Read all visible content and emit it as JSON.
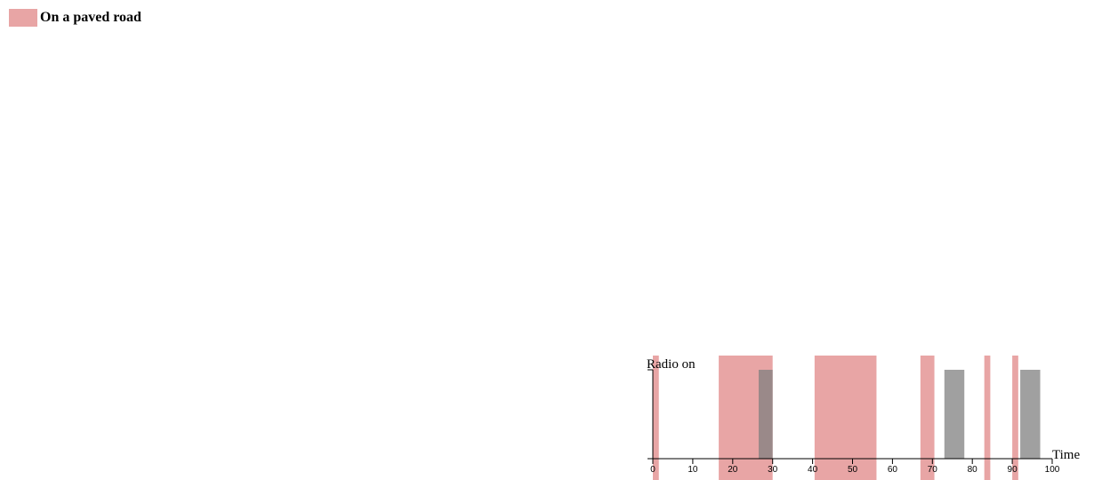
{
  "legend": {
    "label": "On a paved road",
    "color": "#e8a5a5"
  },
  "chart_data": {
    "type": "bar",
    "xlabel": "Time",
    "ylabel": "Radio on",
    "xlim": [
      0,
      100
    ],
    "x_ticks": [
      "0",
      "10",
      "20",
      "30",
      "40",
      "50",
      "60",
      "70",
      "80",
      "90",
      "100"
    ],
    "shaded_intervals": {
      "name": "On a paved road",
      "color": "#e8a5a5",
      "ranges": [
        [
          0,
          1.5
        ],
        [
          16.5,
          30
        ],
        [
          40.5,
          56
        ],
        [
          67,
          70.5
        ],
        [
          83,
          84.5
        ],
        [
          90,
          91.5
        ]
      ]
    },
    "radio_on_intervals": {
      "color": "#808080",
      "ranges": [
        [
          26.5,
          30
        ],
        [
          73,
          78
        ],
        [
          92,
          97
        ]
      ]
    }
  }
}
